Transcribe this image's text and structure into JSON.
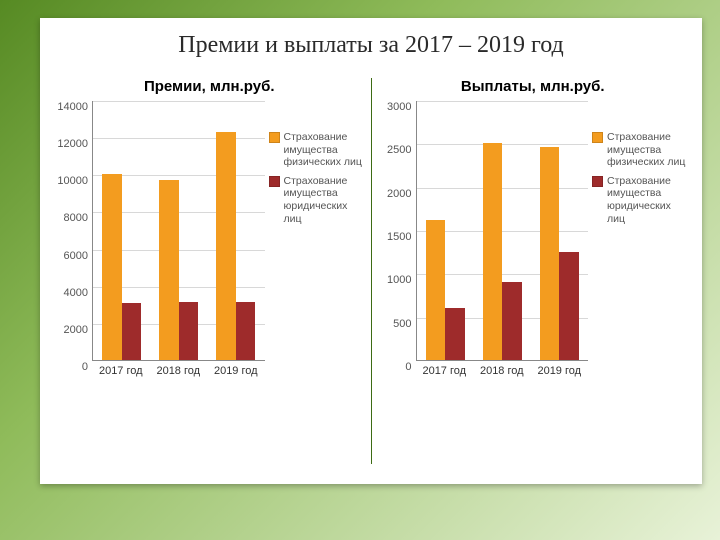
{
  "slide_title": "Премии и выплаты за 2017 – 2019 год",
  "series_meta": {
    "s1": {
      "label": "Страхование имущества физических лиц",
      "color": "#f39c1f"
    },
    "s2": {
      "label": "Страхование имущества юридических лиц",
      "color": "#9e2b2b"
    }
  },
  "background": {
    "gradient_from": "#568a23",
    "gradient_to": "#e8f2d8"
  },
  "charts": [
    {
      "title": "Премии, млн.руб.",
      "type": "bar",
      "categories": [
        "2017 год",
        "2018 год",
        "2019 год"
      ],
      "series": [
        {
          "ref": "s1",
          "values": [
            10000,
            9700,
            12300
          ]
        },
        {
          "ref": "s2",
          "values": [
            3050,
            3150,
            3150
          ]
        }
      ],
      "ylim": [
        0,
        14000
      ],
      "ytick_step": 2000,
      "bar_width": 0.34,
      "grid_color": "#d8d8d8",
      "axis_color": "#888888",
      "label_fontsize": 11
    },
    {
      "title": "Выплаты, млн.руб.",
      "type": "bar",
      "categories": [
        "2017 год",
        "2018 год",
        "2019 год"
      ],
      "series": [
        {
          "ref": "s1",
          "values": [
            1620,
            2500,
            2460
          ]
        },
        {
          "ref": "s2",
          "values": [
            600,
            900,
            1250
          ]
        }
      ],
      "ylim": [
        0,
        3000
      ],
      "ytick_step": 500,
      "bar_width": 0.34,
      "grid_color": "#d8d8d8",
      "axis_color": "#888888",
      "label_fontsize": 11
    }
  ]
}
